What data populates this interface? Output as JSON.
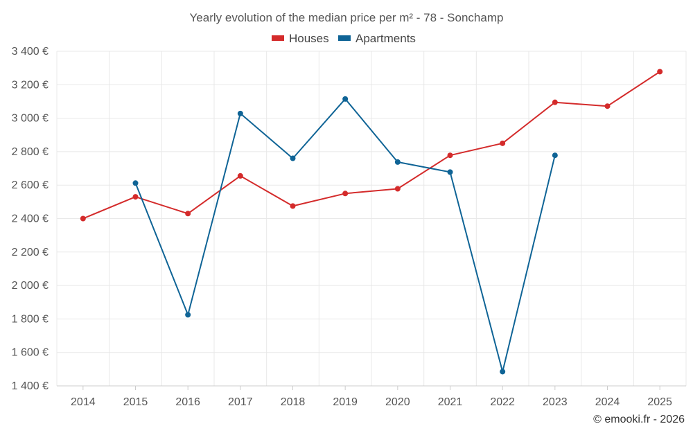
{
  "chart_data": {
    "type": "line",
    "title": "Yearly evolution of the median price per m² - 78 - Sonchamp",
    "categories": [
      "2014",
      "2015",
      "2016",
      "2017",
      "2018",
      "2019",
      "2020",
      "2021",
      "2022",
      "2023",
      "2024",
      "2025"
    ],
    "series": [
      {
        "name": "Houses",
        "color": "#d42b2b",
        "values": [
          2400,
          2530,
          2430,
          2655,
          2475,
          2550,
          2578,
          2778,
          2850,
          3095,
          3072,
          3278
        ]
      },
      {
        "name": "Apartments",
        "color": "#0f6496",
        "values": [
          null,
          2612,
          1825,
          3028,
          2760,
          3115,
          2738,
          2678,
          1485,
          2778,
          null,
          null
        ]
      }
    ],
    "y_ticks": [
      "1 400 €",
      "1 600 €",
      "1 800 €",
      "2 000 €",
      "2 200 €",
      "2 400 €",
      "2 600 €",
      "2 800 €",
      "3 000 €",
      "3 200 €",
      "3 400 €"
    ],
    "ylim": [
      1400,
      3400
    ],
    "y_step": 200,
    "xlabel": "",
    "ylabel": "",
    "grid": true,
    "legend_position": "top-center"
  },
  "credit": "© emooki.fr - 2026"
}
